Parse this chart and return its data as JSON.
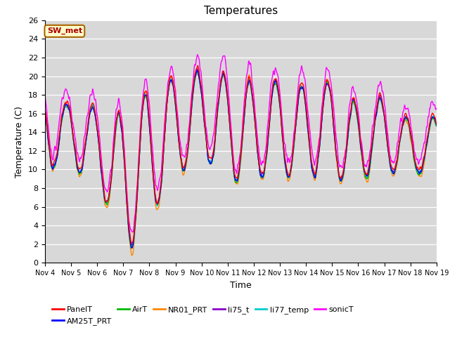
{
  "title": "Temperatures",
  "xlabel": "Time",
  "ylabel": "Temperature (C)",
  "ylim": [
    0,
    26
  ],
  "yticks": [
    0,
    2,
    4,
    6,
    8,
    10,
    12,
    14,
    16,
    18,
    20,
    22,
    24,
    26
  ],
  "series": {
    "PanelT": {
      "color": "#ff0000",
      "lw": 1.0
    },
    "AM25T_PRT": {
      "color": "#0000ff",
      "lw": 1.0
    },
    "AirT": {
      "color": "#00bb00",
      "lw": 1.0
    },
    "NR01_PRT": {
      "color": "#ff8800",
      "lw": 1.0
    },
    "li75_t": {
      "color": "#8800cc",
      "lw": 1.0
    },
    "li77_temp": {
      "color": "#00cccc",
      "lw": 1.0
    },
    "sonicT": {
      "color": "#ff00ff",
      "lw": 1.0
    }
  },
  "annotation_text": "SW_met",
  "annotation_color": "#aa0000",
  "annotation_bg": "#ffffcc",
  "annotation_border": "#aa6600",
  "plot_bg_color": "#d8d8d8",
  "grid_color": "#ffffff",
  "title_fontsize": 11,
  "label_fontsize": 9,
  "tick_fontsize": 8,
  "legend_fontsize": 8
}
